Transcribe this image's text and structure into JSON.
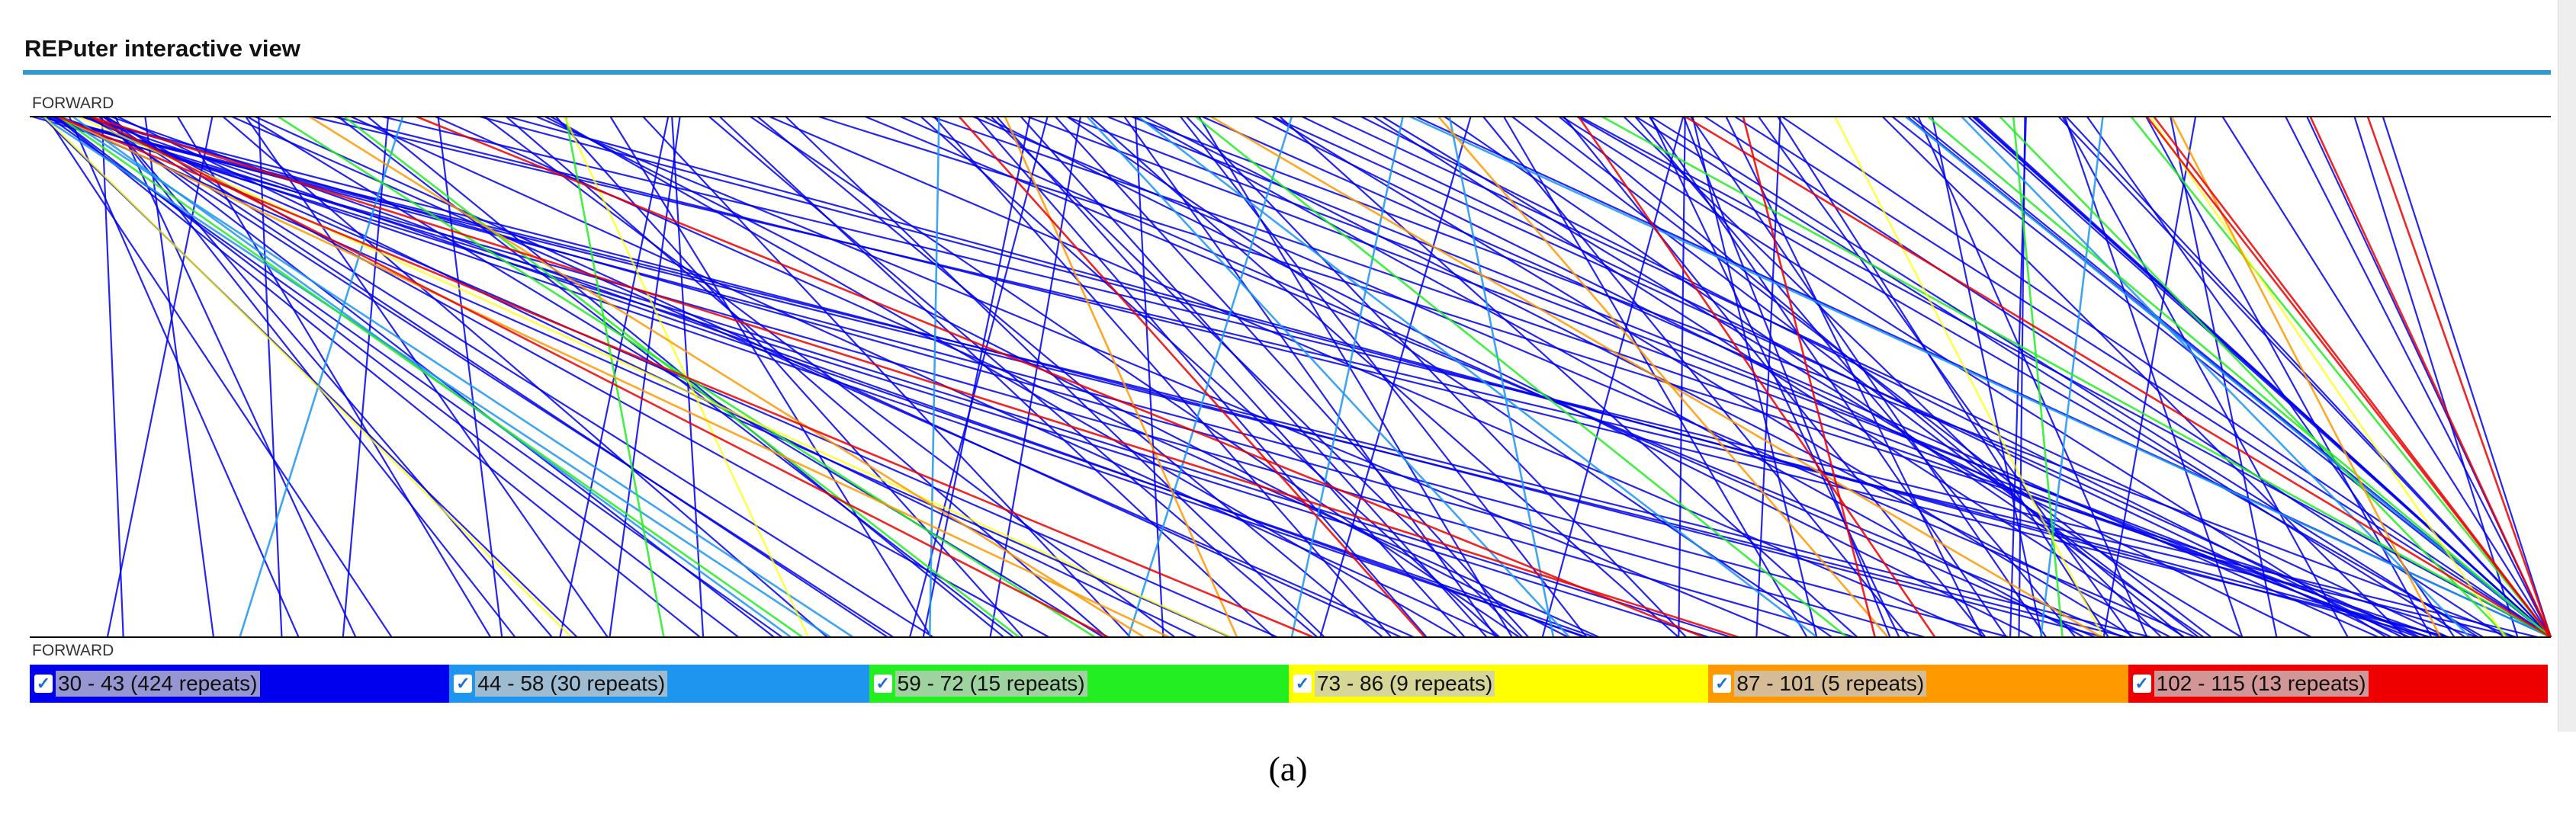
{
  "header": {
    "title": "REPuter interactive view"
  },
  "view": {
    "top_label": "FORWARD",
    "bottom_label": "FORWARD"
  },
  "legend": {
    "items": [
      {
        "label": "30 - 43 (424 repeats)",
        "color": "#0000ee"
      },
      {
        "label": "44 - 58 (30 repeats)",
        "color": "#1e96f0"
      },
      {
        "label": "59 - 72 (15 repeats)",
        "color": "#22ee22"
      },
      {
        "label": "73 - 86 (9 repeats)",
        "color": "#ffff00"
      },
      {
        "label": "87 - 101 (5 repeats)",
        "color": "#ff9900"
      },
      {
        "label": "102 - 115 (13 repeats)",
        "color": "#ee0000"
      }
    ]
  },
  "caption": "(a)"
}
